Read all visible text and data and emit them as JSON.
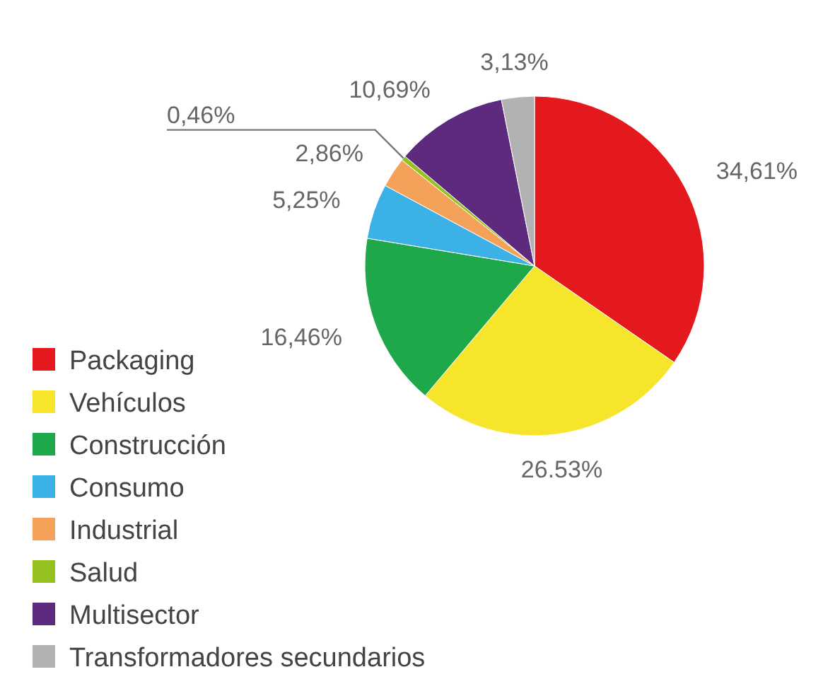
{
  "chart_data": {
    "type": "pie",
    "categories": [
      "Packaging",
      "Vehículos",
      "Construcción",
      "Consumo",
      "Industrial",
      "Salud",
      "Multisector",
      "Transformadores secundarios"
    ],
    "values": [
      34.61,
      26.53,
      16.46,
      5.25,
      2.86,
      0.46,
      10.69,
      3.13
    ],
    "value_labels": [
      "34,61%",
      "26.53%",
      "16,46%",
      "5,25%",
      "2,86%",
      "0,46%",
      "10,69%",
      "3,13%"
    ],
    "colors": [
      "#e3191e",
      "#f6e52b",
      "#1fa84a",
      "#3bb1e6",
      "#f4a259",
      "#94c11f",
      "#5d2a7d",
      "#b2b2b2"
    ],
    "legend": "bottom left"
  }
}
